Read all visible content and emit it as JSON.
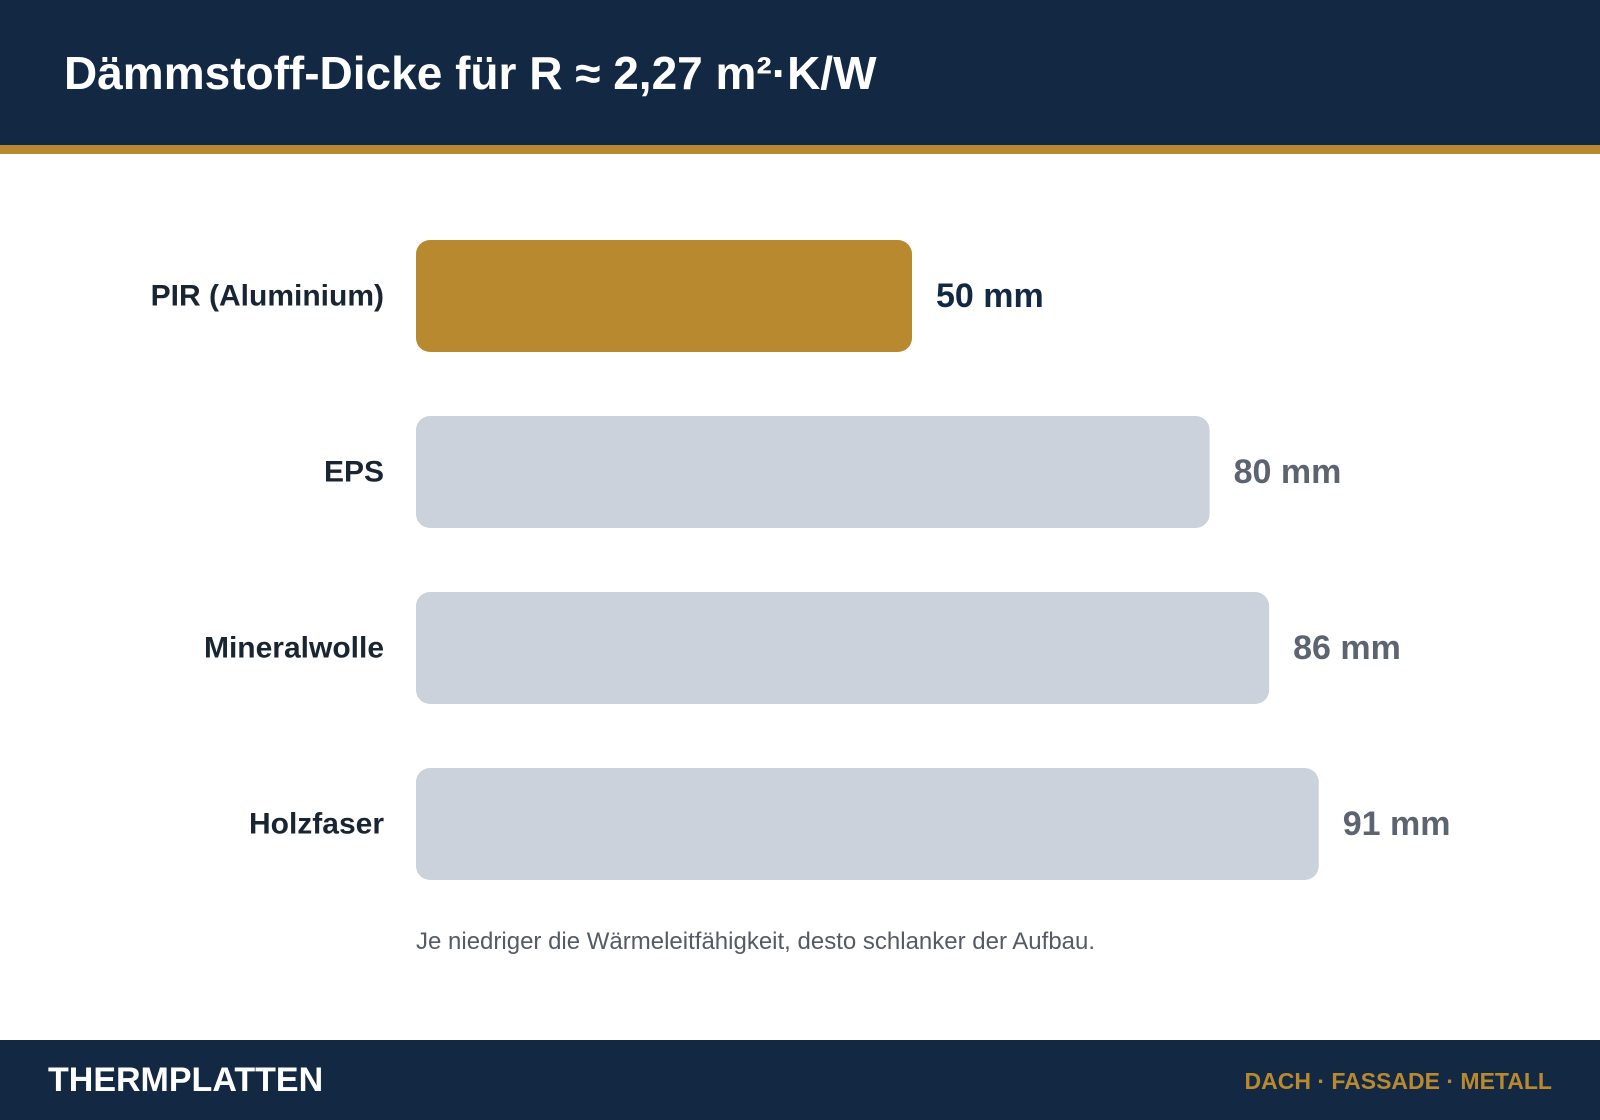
{
  "header": {
    "title": "Dämmstoff-Dicke für R ≈ 2,27 m²·K/W"
  },
  "chart_data": {
    "type": "bar",
    "orientation": "horizontal",
    "title": "Dämmstoff-Dicke für R ≈ 2,27 m²·K/W",
    "categories": [
      "PIR (Aluminium)",
      "EPS",
      "Mineralwolle",
      "Holzfaser"
    ],
    "values": [
      50,
      80,
      86,
      91
    ],
    "value_labels": [
      "50 mm",
      "80 mm",
      "86 mm",
      "91 mm"
    ],
    "unit": "mm",
    "highlight_index": 0,
    "colors": {
      "highlight_bar": "#b8892e",
      "default_bar": "#cbd2dc",
      "highlight_value_text": "#132843",
      "default_value_text": "#5b6470"
    },
    "grid": false,
    "legend": "none"
  },
  "footnote": "Je niedriger die Wärmeleitfähigkeit, desto schlanker der Aufbau.",
  "footer": {
    "brand": "THERMPLATTEN",
    "tagline": "DACH · FASSADE · METALL"
  },
  "colors": {
    "navy": "#132843",
    "gold": "#b8892e"
  }
}
